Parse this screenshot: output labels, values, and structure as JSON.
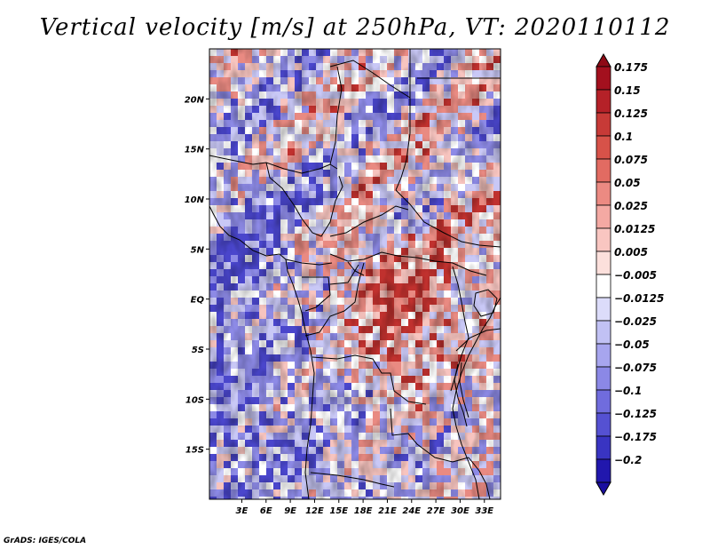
{
  "title": "Vertical velocity [m/s] at 250hPa, VT: 2020110112",
  "credit": "GrADS: IGES/COLA",
  "map": {
    "lon_range": [
      -1,
      35
    ],
    "lat_range": [
      -20,
      25
    ],
    "lat_ticks": [
      {
        "value": 20,
        "label": "20N"
      },
      {
        "value": 15,
        "label": "15N"
      },
      {
        "value": 10,
        "label": "10N"
      },
      {
        "value": 5,
        "label": "5N"
      },
      {
        "value": 0,
        "label": "EQ"
      },
      {
        "value": -5,
        "label": "5S"
      },
      {
        "value": -10,
        "label": "10S"
      },
      {
        "value": -15,
        "label": "15S"
      }
    ],
    "lon_ticks": [
      {
        "value": 3,
        "label": "3E"
      },
      {
        "value": 6,
        "label": "6E"
      },
      {
        "value": 9,
        "label": "9E"
      },
      {
        "value": 12,
        "label": "12E"
      },
      {
        "value": 15,
        "label": "15E"
      },
      {
        "value": 18,
        "label": "18E"
      },
      {
        "value": 21,
        "label": "21E"
      },
      {
        "value": 24,
        "label": "24E"
      },
      {
        "value": 27,
        "label": "27E"
      },
      {
        "value": 30,
        "label": "30E"
      },
      {
        "value": 33,
        "label": "33E"
      }
    ]
  },
  "colorbar": {
    "levels": [
      {
        "label": "0.175",
        "color": "#a3101e"
      },
      {
        "label": "0.15",
        "color": "#b52128"
      },
      {
        "label": "0.125",
        "color": "#c73a37"
      },
      {
        "label": "0.1",
        "color": "#d75249"
      },
      {
        "label": "0.075",
        "color": "#e26b62"
      },
      {
        "label": "0.05",
        "color": "#ec8a82"
      },
      {
        "label": "0.025",
        "color": "#f4a9a3"
      },
      {
        "label": "0.0125",
        "color": "#f9c6c1"
      },
      {
        "label": "0.005",
        "color": "#fce0dc"
      },
      {
        "label": "−0.005",
        "color": "#ffffff"
      },
      {
        "label": "−0.0125",
        "color": "#dcdcfa"
      },
      {
        "label": "−0.025",
        "color": "#c1c1f4"
      },
      {
        "label": "−0.05",
        "color": "#a7a5ee"
      },
      {
        "label": "−0.075",
        "color": "#8b88e6"
      },
      {
        "label": "−0.1",
        "color": "#706cdd"
      },
      {
        "label": "−0.125",
        "color": "#5551d2"
      },
      {
        "label": "−0.175",
        "color": "#3934c2"
      },
      {
        "label": "−0.2",
        "color": "#2117ad"
      }
    ],
    "top_cap_color": "#8e0a16",
    "bottom_cap_color": "#1a0ea0"
  },
  "field_colors": {
    "red_strong": "#c0312e",
    "red_mid": "#e98a82",
    "red_light": "#f7c4bf",
    "blue_strong": "#4a46cc",
    "blue_mid": "#8d8ae6",
    "blue_light": "#c9c8f6"
  }
}
